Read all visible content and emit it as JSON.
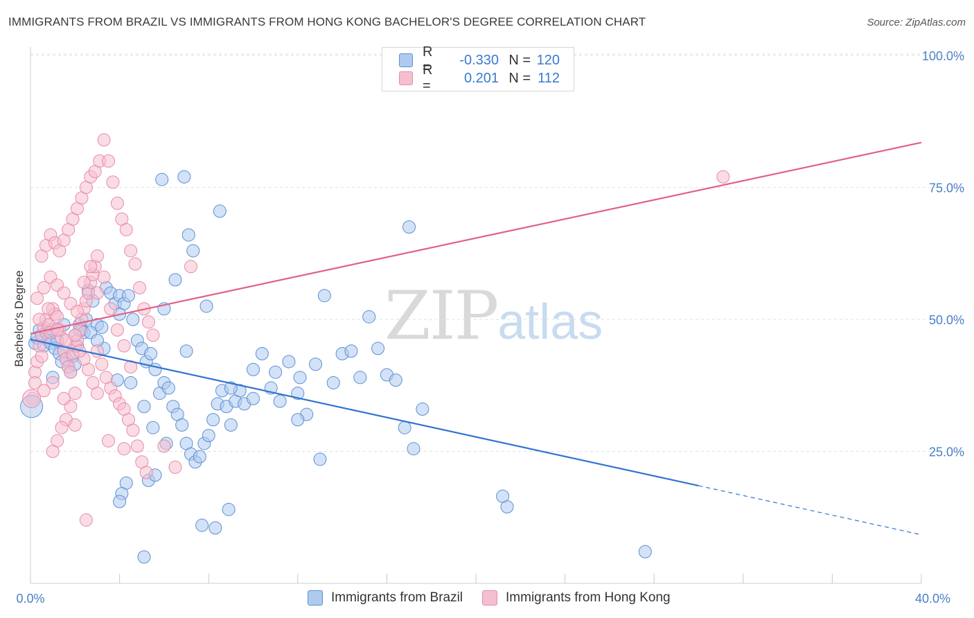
{
  "title": "IMMIGRANTS FROM BRAZIL VS IMMIGRANTS FROM HONG KONG BACHELOR'S DEGREE CORRELATION CHART",
  "source": "Source: ZipAtlas.com",
  "watermark": {
    "zip": "ZIP",
    "atlas": "atlas"
  },
  "legend": {
    "rows": [
      {
        "r_label": "R =",
        "r_value": "-0.330",
        "n_label": "N =",
        "n_value": "120"
      },
      {
        "r_label": "R =",
        "r_value": "0.201",
        "n_label": "N =",
        "n_value": "112"
      }
    ]
  },
  "bottom_legend": {
    "brazil": "Immigrants from Brazil",
    "hongkong": "Immigrants from Hong Kong"
  },
  "colors": {
    "brazil_fill": "#aecbef",
    "brazil_stroke": "#5b8fd6",
    "brazil_line": "#2f74d0",
    "hk_fill": "#f5bfd0",
    "hk_stroke": "#e88aa8",
    "hk_line": "#e0608a",
    "axis_text": "#4a7fc8",
    "grid": "#e0e0e0"
  },
  "chart_data": {
    "type": "scatter",
    "title": "IMMIGRANTS FROM BRAZIL VS IMMIGRANTS FROM HONG KONG BACHELOR'S DEGREE CORRELATION CHART",
    "xlabel": "",
    "ylabel": "Bachelor's Degree",
    "xlim": [
      0,
      40
    ],
    "ylim": [
      0,
      100
    ],
    "x_tick_labels": [
      "0.0%",
      "40.0%"
    ],
    "y_tick_labels": [
      "25.0%",
      "50.0%",
      "75.0%",
      "100.0%"
    ],
    "y_ticks": [
      25,
      50,
      75,
      100
    ],
    "grid": "horizontal dashed",
    "legend_position": "top-center",
    "series": [
      {
        "name": "Immigrants from Brazil",
        "r": -0.33,
        "n": 120,
        "trend": {
          "x0": 0,
          "y0": 46.2,
          "x1": 30,
          "y1": 18.5,
          "dashed_to_x": 40,
          "dashed_to_y": 9.2
        },
        "points": [
          [
            0.2,
            45.5
          ],
          [
            0.3,
            46.5
          ],
          [
            0.4,
            48
          ],
          [
            0.5,
            47
          ],
          [
            0.6,
            45
          ],
          [
            0.7,
            47.5
          ],
          [
            0.8,
            46
          ],
          [
            0.9,
            45.5
          ],
          [
            1.0,
            48
          ],
          [
            1.1,
            44.5
          ],
          [
            1.2,
            46
          ],
          [
            1.3,
            43.5
          ],
          [
            1.4,
            42
          ],
          [
            1.5,
            44
          ],
          [
            1.6,
            42.5
          ],
          [
            1.7,
            41
          ],
          [
            1.8,
            40
          ],
          [
            1.9,
            43
          ],
          [
            2.0,
            41.5
          ],
          [
            2.1,
            45
          ],
          [
            2.2,
            49
          ],
          [
            2.3,
            48
          ],
          [
            2.4,
            47.5
          ],
          [
            2.5,
            50
          ],
          [
            2.6,
            55.5
          ],
          [
            2.8,
            53.5
          ],
          [
            3.0,
            49
          ],
          [
            3.2,
            48.5
          ],
          [
            3.4,
            56
          ],
          [
            3.6,
            55
          ],
          [
            3.8,
            53
          ],
          [
            4.0,
            54.5
          ],
          [
            4.2,
            53
          ],
          [
            4.4,
            54.5
          ],
          [
            4.6,
            50
          ],
          [
            4.8,
            46
          ],
          [
            5.0,
            44.5
          ],
          [
            5.2,
            42
          ],
          [
            5.4,
            43.5
          ],
          [
            5.6,
            40.5
          ],
          [
            5.8,
            36
          ],
          [
            6.0,
            38
          ],
          [
            6.2,
            37
          ],
          [
            6.4,
            33.5
          ],
          [
            6.6,
            32
          ],
          [
            6.8,
            30
          ],
          [
            7.0,
            26.5
          ],
          [
            7.2,
            24.5
          ],
          [
            7.4,
            23
          ],
          [
            7.6,
            24
          ],
          [
            7.8,
            26.5
          ],
          [
            8.0,
            28
          ],
          [
            8.2,
            31
          ],
          [
            8.4,
            34
          ],
          [
            8.6,
            36.5
          ],
          [
            8.8,
            33.5
          ],
          [
            9.0,
            30
          ],
          [
            9.2,
            34.5
          ],
          [
            9.4,
            36.5
          ],
          [
            9.6,
            34
          ],
          [
            10.0,
            40.5
          ],
          [
            10.4,
            43.5
          ],
          [
            10.8,
            37
          ],
          [
            11.2,
            34.5
          ],
          [
            11.6,
            42
          ],
          [
            12.0,
            36
          ],
          [
            12.4,
            32
          ],
          [
            12.8,
            41.5
          ],
          [
            13.2,
            54.5
          ],
          [
            13.6,
            38
          ],
          [
            14.0,
            43.5
          ],
          [
            14.4,
            44
          ],
          [
            14.8,
            39
          ],
          [
            15.2,
            50.5
          ],
          [
            15.6,
            44.5
          ],
          [
            16.0,
            39.5
          ],
          [
            16.4,
            38.5
          ],
          [
            16.8,
            29.5
          ],
          [
            17.2,
            25.5
          ],
          [
            17.6,
            33
          ],
          [
            1.5,
            49
          ],
          [
            2.7,
            47.5
          ],
          [
            3.3,
            44.5
          ],
          [
            3.9,
            38.5
          ],
          [
            4.5,
            38
          ],
          [
            5.1,
            33.5
          ],
          [
            5.5,
            29.5
          ],
          [
            6.1,
            26.5
          ],
          [
            6.5,
            57.5
          ],
          [
            7.1,
            66
          ],
          [
            7.3,
            63
          ],
          [
            7.9,
            52.5
          ],
          [
            8.5,
            70.5
          ],
          [
            5.9,
            76.5
          ],
          [
            6.9,
            77
          ],
          [
            17.0,
            67.5
          ],
          [
            4.3,
            19
          ],
          [
            4.1,
            17
          ],
          [
            4.0,
            15.5
          ],
          [
            5.3,
            19.5
          ],
          [
            5.6,
            20.5
          ],
          [
            7.7,
            11
          ],
          [
            8.3,
            10.5
          ],
          [
            8.9,
            14
          ],
          [
            5.1,
            5
          ],
          [
            21.4,
            14.5
          ],
          [
            21.2,
            16.5
          ],
          [
            27.6,
            6
          ],
          [
            12.1,
            39
          ],
          [
            11.0,
            40
          ],
          [
            1.0,
            39
          ],
          [
            2.0,
            47
          ],
          [
            3.0,
            46
          ],
          [
            4.0,
            51
          ],
          [
            6.0,
            52
          ],
          [
            7.0,
            44
          ],
          [
            9.0,
            37
          ],
          [
            10.0,
            35
          ],
          [
            12.0,
            31
          ],
          [
            13.0,
            23.5
          ]
        ]
      },
      {
        "name": "Immigrants from Hong Kong",
        "r": 0.201,
        "n": 112,
        "trend": {
          "x0": 0,
          "y0": 47.3,
          "x1": 40,
          "y1": 83.5
        },
        "points": [
          [
            0.1,
            35
          ],
          [
            0.2,
            40
          ],
          [
            0.3,
            42
          ],
          [
            0.4,
            45
          ],
          [
            0.5,
            47
          ],
          [
            0.6,
            48.5
          ],
          [
            0.7,
            50
          ],
          [
            0.8,
            49
          ],
          [
            0.9,
            47.5
          ],
          [
            1.0,
            52
          ],
          [
            1.1,
            51
          ],
          [
            1.2,
            50.5
          ],
          [
            1.3,
            48
          ],
          [
            1.4,
            46.5
          ],
          [
            1.5,
            44
          ],
          [
            1.6,
            42.5
          ],
          [
            1.7,
            41
          ],
          [
            1.8,
            40
          ],
          [
            1.9,
            43.5
          ],
          [
            2.0,
            45
          ],
          [
            2.1,
            46
          ],
          [
            2.2,
            48
          ],
          [
            2.3,
            50
          ],
          [
            2.4,
            52
          ],
          [
            2.5,
            53.5
          ],
          [
            2.6,
            55
          ],
          [
            2.7,
            57
          ],
          [
            2.8,
            58.5
          ],
          [
            2.9,
            60
          ],
          [
            3.0,
            62
          ],
          [
            0.5,
            62
          ],
          [
            0.7,
            64
          ],
          [
            0.9,
            66
          ],
          [
            1.1,
            64.5
          ],
          [
            1.3,
            63
          ],
          [
            1.5,
            65
          ],
          [
            1.7,
            67
          ],
          [
            1.9,
            69
          ],
          [
            2.1,
            71
          ],
          [
            2.3,
            73
          ],
          [
            2.5,
            75
          ],
          [
            2.7,
            77
          ],
          [
            2.9,
            78
          ],
          [
            3.1,
            80
          ],
          [
            3.3,
            84
          ],
          [
            3.5,
            80
          ],
          [
            3.7,
            76
          ],
          [
            3.9,
            72
          ],
          [
            4.1,
            69
          ],
          [
            4.3,
            67
          ],
          [
            4.5,
            63
          ],
          [
            4.7,
            60.5
          ],
          [
            4.9,
            56
          ],
          [
            5.1,
            52
          ],
          [
            5.3,
            49.5
          ],
          [
            5.5,
            47
          ],
          [
            3.0,
            44
          ],
          [
            3.2,
            41.5
          ],
          [
            3.4,
            39
          ],
          [
            3.6,
            37
          ],
          [
            3.8,
            35.5
          ],
          [
            4.0,
            34
          ],
          [
            4.2,
            33
          ],
          [
            4.4,
            31
          ],
          [
            4.6,
            29
          ],
          [
            4.8,
            26
          ],
          [
            5.0,
            23
          ],
          [
            5.2,
            21
          ],
          [
            3.0,
            36
          ],
          [
            2.8,
            38
          ],
          [
            2.6,
            40.5
          ],
          [
            2.4,
            42.5
          ],
          [
            2.2,
            44
          ],
          [
            2.0,
            36
          ],
          [
            1.8,
            33.5
          ],
          [
            1.6,
            31
          ],
          [
            1.4,
            29.5
          ],
          [
            1.2,
            27
          ],
          [
            1.0,
            25
          ],
          [
            2.5,
            12
          ],
          [
            0.3,
            54
          ],
          [
            0.6,
            56
          ],
          [
            0.9,
            58
          ],
          [
            1.2,
            56.5
          ],
          [
            1.5,
            55
          ],
          [
            1.8,
            53
          ],
          [
            2.1,
            51.5
          ],
          [
            2.4,
            57
          ],
          [
            2.7,
            60
          ],
          [
            3.0,
            55
          ],
          [
            3.3,
            58
          ],
          [
            3.6,
            52
          ],
          [
            3.9,
            48
          ],
          [
            4.2,
            45
          ],
          [
            4.5,
            41
          ],
          [
            0.4,
            50
          ],
          [
            0.8,
            52
          ],
          [
            1.2,
            48
          ],
          [
            1.6,
            46
          ],
          [
            2.0,
            47
          ],
          [
            0.5,
            43
          ],
          [
            1.0,
            38
          ],
          [
            1.5,
            35
          ],
          [
            2.0,
            30
          ],
          [
            3.5,
            27
          ],
          [
            4.2,
            25.5
          ],
          [
            6.0,
            26
          ],
          [
            6.5,
            22
          ],
          [
            7.2,
            60
          ],
          [
            31.1,
            77
          ],
          [
            0.2,
            38
          ],
          [
            0.6,
            36.5
          ]
        ]
      }
    ]
  }
}
